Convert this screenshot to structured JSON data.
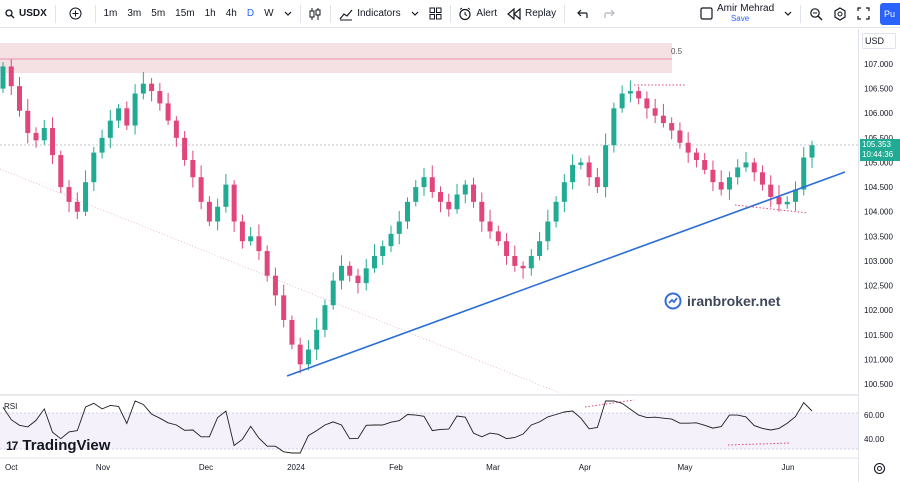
{
  "toolbar": {
    "symbol": "USDX",
    "intervals": [
      "1m",
      "3m",
      "5m",
      "15m",
      "1h",
      "4h",
      "D",
      "W"
    ],
    "active_interval": "D",
    "indicators_label": "Indicators",
    "alert_label": "Alert",
    "replay_label": "Replay",
    "user_name": "Amir Mehrad",
    "save_label": "Save",
    "publish_label": "Pu"
  },
  "price_scale": {
    "currency": "USD",
    "levels": [
      "107.000",
      "106.500",
      "106.000",
      "105.500",
      "105.000",
      "104.500",
      "104.000",
      "103.500",
      "103.000",
      "102.500",
      "102.000",
      "101.500",
      "101.000",
      "100.500"
    ],
    "current_price": "105.353",
    "countdown": "10:44:36",
    "rsi_levels": [
      "60.00",
      "40.00"
    ]
  },
  "time_axis": {
    "labels": [
      "Oct",
      "Nov",
      "Dec",
      "2024",
      "Feb",
      "Mar",
      "Apr",
      "May",
      "Jun"
    ]
  },
  "annotations": {
    "fib_label": "0.5",
    "rsi_label": "RSI",
    "watermark": "iranbroker.net",
    "brand": "TradingView"
  },
  "colors": {
    "up": "#22ab94",
    "down": "#e0457b",
    "trendline": "#2b6fd6",
    "zone_fill": "#f2d7da",
    "accent": "#2962ff"
  },
  "chart_data": {
    "type": "candlestick",
    "ylim": [
      100.35,
      107.55
    ],
    "series": [
      {
        "values": [
          106.95,
          106.55,
          106.05,
          105.6,
          105.45,
          105.7,
          105.15,
          104.5,
          104.2,
          104.0,
          104.6,
          105.2,
          105.5,
          105.85,
          106.1,
          105.75,
          106.4,
          106.6,
          106.45,
          106.2,
          105.85,
          105.5,
          105.05,
          104.7,
          104.2,
          103.8,
          104.1,
          104.55,
          103.8,
          103.4,
          103.5,
          103.2,
          102.7,
          102.3,
          101.8,
          101.3,
          100.9,
          101.2,
          101.6,
          102.1,
          102.6,
          102.9,
          102.7,
          102.55,
          102.85,
          103.1,
          103.3,
          103.55,
          103.8,
          104.2,
          104.5,
          104.7,
          104.4,
          104.2,
          104.05,
          104.35,
          104.55,
          104.2,
          103.8,
          103.6,
          103.4,
          103.1,
          102.9,
          102.85,
          103.1,
          103.4,
          103.8,
          104.2,
          104.6,
          104.95,
          105.0,
          104.7,
          104.5,
          105.35,
          106.1,
          106.4,
          106.45,
          106.3,
          106.1,
          105.95,
          105.8,
          105.65,
          105.4,
          105.2,
          105.05,
          104.85,
          104.6,
          104.45,
          104.7,
          104.9,
          105.0,
          104.8,
          104.55,
          104.3,
          104.15,
          104.2,
          104.45,
          105.1,
          105.35
        ]
      }
    ]
  }
}
